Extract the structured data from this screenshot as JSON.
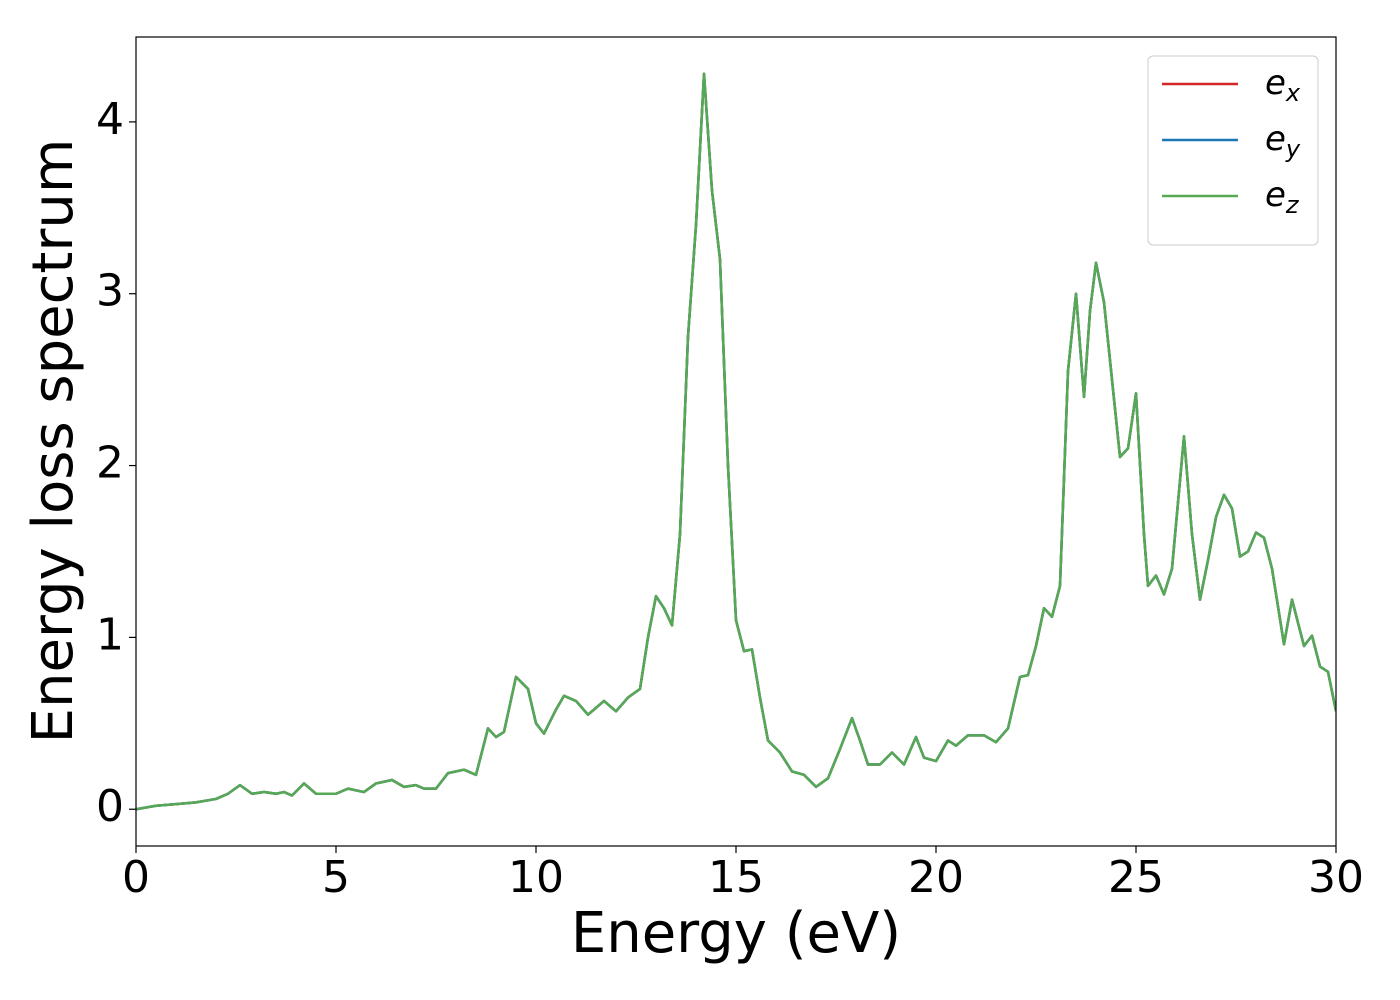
{
  "chart_data": {
    "type": "line",
    "xlabel": "Energy (eV)",
    "ylabel": "Energy loss spectrum",
    "x": [
      0,
      0.5,
      1.0,
      1.5,
      2.0,
      2.3,
      2.6,
      2.9,
      3.2,
      3.5,
      3.7,
      3.9,
      4.2,
      4.5,
      5.0,
      5.3,
      5.7,
      6.0,
      6.4,
      6.7,
      7.0,
      7.2,
      7.5,
      7.8,
      8.2,
      8.5,
      8.8,
      9.0,
      9.2,
      9.5,
      9.8,
      10.0,
      10.2,
      10.5,
      10.7,
      11.0,
      11.3,
      11.7,
      12.0,
      12.3,
      12.6,
      12.8,
      13.0,
      13.2,
      13.4,
      13.6,
      13.8,
      14.0,
      14.2,
      14.4,
      14.6,
      14.8,
      15.0,
      15.2,
      15.4,
      15.6,
      15.8,
      16.1,
      16.4,
      16.7,
      17.0,
      17.3,
      17.6,
      17.9,
      18.1,
      18.3,
      18.6,
      18.9,
      19.2,
      19.5,
      19.7,
      20.0,
      20.3,
      20.5,
      20.8,
      21.2,
      21.5,
      21.8,
      22.1,
      22.3,
      22.5,
      22.7,
      22.9,
      23.1,
      23.3,
      23.5,
      23.7,
      23.85,
      24.0,
      24.2,
      24.4,
      24.6,
      24.8,
      25.0,
      25.2,
      25.3,
      25.5,
      25.7,
      25.9,
      26.2,
      26.4,
      26.6,
      26.8,
      27.0,
      27.2,
      27.4,
      27.6,
      27.8,
      28.0,
      28.2,
      28.4,
      28.7,
      28.9,
      29.2,
      29.4,
      29.6,
      29.8,
      30.0
    ],
    "series": [
      {
        "name": "ex",
        "color": "#d62728",
        "values": [
          0.0,
          0.02,
          0.03,
          0.04,
          0.06,
          0.09,
          0.14,
          0.09,
          0.1,
          0.09,
          0.1,
          0.08,
          0.15,
          0.09,
          0.09,
          0.12,
          0.1,
          0.15,
          0.17,
          0.13,
          0.14,
          0.12,
          0.12,
          0.21,
          0.23,
          0.2,
          0.47,
          0.42,
          0.45,
          0.77,
          0.7,
          0.5,
          0.44,
          0.58,
          0.66,
          0.63,
          0.55,
          0.63,
          0.57,
          0.65,
          0.7,
          1.0,
          1.24,
          1.17,
          1.07,
          1.6,
          2.75,
          3.4,
          4.28,
          3.6,
          3.2,
          2.0,
          1.1,
          0.92,
          0.93,
          0.65,
          0.4,
          0.33,
          0.22,
          0.2,
          0.13,
          0.18,
          0.35,
          0.53,
          0.4,
          0.26,
          0.26,
          0.33,
          0.26,
          0.42,
          0.3,
          0.28,
          0.4,
          0.37,
          0.43,
          0.43,
          0.39,
          0.47,
          0.77,
          0.78,
          0.95,
          1.17,
          1.12,
          1.3,
          2.55,
          3.0,
          2.4,
          2.9,
          3.18,
          2.95,
          2.5,
          2.05,
          2.1,
          2.42,
          1.6,
          1.3,
          1.36,
          1.25,
          1.4,
          2.17,
          1.6,
          1.22,
          1.45,
          1.7,
          1.83,
          1.75,
          1.47,
          1.5,
          1.61,
          1.58,
          1.4,
          0.96,
          1.22,
          0.95,
          1.01,
          0.83,
          0.8,
          0.57
        ]
      },
      {
        "name": "ey",
        "color": "#1f77b4",
        "values": [
          0.0,
          0.02,
          0.03,
          0.04,
          0.06,
          0.09,
          0.14,
          0.09,
          0.1,
          0.09,
          0.1,
          0.08,
          0.15,
          0.09,
          0.09,
          0.12,
          0.1,
          0.15,
          0.17,
          0.13,
          0.14,
          0.12,
          0.12,
          0.21,
          0.23,
          0.2,
          0.47,
          0.42,
          0.45,
          0.77,
          0.7,
          0.5,
          0.44,
          0.58,
          0.66,
          0.63,
          0.55,
          0.63,
          0.57,
          0.65,
          0.7,
          1.0,
          1.24,
          1.17,
          1.07,
          1.6,
          2.75,
          3.4,
          4.28,
          3.6,
          3.2,
          2.0,
          1.1,
          0.92,
          0.93,
          0.65,
          0.4,
          0.33,
          0.22,
          0.2,
          0.13,
          0.18,
          0.35,
          0.53,
          0.4,
          0.26,
          0.26,
          0.33,
          0.26,
          0.42,
          0.3,
          0.28,
          0.4,
          0.37,
          0.43,
          0.43,
          0.39,
          0.47,
          0.77,
          0.78,
          0.95,
          1.17,
          1.12,
          1.3,
          2.55,
          3.0,
          2.4,
          2.9,
          3.18,
          2.95,
          2.5,
          2.05,
          2.1,
          2.42,
          1.6,
          1.3,
          1.36,
          1.25,
          1.4,
          2.17,
          1.6,
          1.22,
          1.45,
          1.7,
          1.83,
          1.75,
          1.47,
          1.5,
          1.61,
          1.58,
          1.4,
          0.96,
          1.22,
          0.95,
          1.01,
          0.83,
          0.8,
          0.57
        ]
      },
      {
        "name": "ez",
        "color": "#55a955",
        "values": [
          0.0,
          0.02,
          0.03,
          0.04,
          0.06,
          0.09,
          0.14,
          0.09,
          0.1,
          0.09,
          0.1,
          0.08,
          0.15,
          0.09,
          0.09,
          0.12,
          0.1,
          0.15,
          0.17,
          0.13,
          0.14,
          0.12,
          0.12,
          0.21,
          0.23,
          0.2,
          0.47,
          0.42,
          0.45,
          0.77,
          0.7,
          0.5,
          0.44,
          0.58,
          0.66,
          0.63,
          0.55,
          0.63,
          0.57,
          0.65,
          0.7,
          1.0,
          1.24,
          1.17,
          1.07,
          1.6,
          2.75,
          3.4,
          4.28,
          3.6,
          3.2,
          2.0,
          1.1,
          0.92,
          0.93,
          0.65,
          0.4,
          0.33,
          0.22,
          0.2,
          0.13,
          0.18,
          0.35,
          0.53,
          0.4,
          0.26,
          0.26,
          0.33,
          0.26,
          0.42,
          0.3,
          0.28,
          0.4,
          0.37,
          0.43,
          0.43,
          0.39,
          0.47,
          0.77,
          0.78,
          0.95,
          1.17,
          1.12,
          1.3,
          2.55,
          3.0,
          2.4,
          2.9,
          3.18,
          2.95,
          2.5,
          2.05,
          2.1,
          2.42,
          1.6,
          1.3,
          1.36,
          1.25,
          1.4,
          2.17,
          1.6,
          1.22,
          1.45,
          1.7,
          1.83,
          1.75,
          1.47,
          1.5,
          1.61,
          1.58,
          1.4,
          0.96,
          1.22,
          0.95,
          1.01,
          0.83,
          0.8,
          0.57
        ]
      }
    ],
    "xlim": [
      0,
      30
    ],
    "xticks": [
      0,
      5,
      10,
      15,
      20,
      25,
      30
    ],
    "ylim": [
      -0.214,
      4.494
    ],
    "yticks": [
      0,
      1,
      2,
      3,
      4
    ],
    "grid": false,
    "legend": "upper right"
  }
}
